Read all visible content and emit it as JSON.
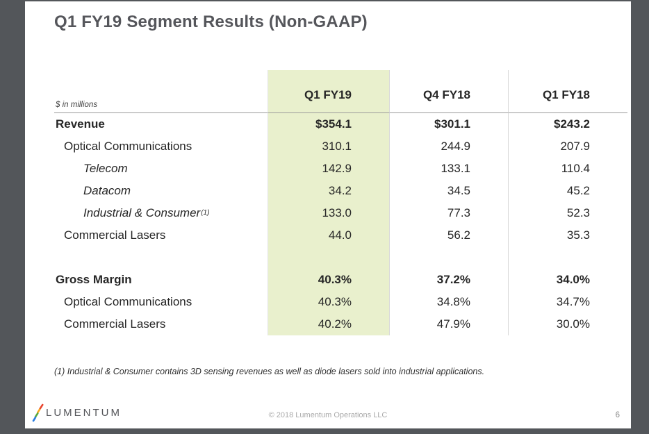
{
  "slide": {
    "title": "Q1 FY19 Segment Results  (Non-GAAP)",
    "units_label": "$ in millions",
    "table": {
      "columns": [
        "Q1 FY19",
        "Q4 FY18",
        "Q1 FY18"
      ],
      "highlight_color": "#e9f0cd",
      "rows": [
        {
          "label": "Revenue",
          "style": "bold",
          "indent": 0,
          "values": [
            "$354.1",
            "$301.1",
            "$243.2"
          ]
        },
        {
          "label": "Optical Communications",
          "style": "normal",
          "indent": 1,
          "values": [
            "310.1",
            "244.9",
            "207.9"
          ]
        },
        {
          "label": "Telecom",
          "style": "italic",
          "indent": 2,
          "values": [
            "142.9",
            "133.1",
            "110.4"
          ]
        },
        {
          "label": "Datacom",
          "style": "italic",
          "indent": 2,
          "values": [
            "34.2",
            "34.5",
            "45.2"
          ]
        },
        {
          "label": "Industrial & Consumer",
          "superscript": "(1)",
          "style": "italic",
          "indent": 2,
          "values": [
            "133.0",
            "77.3",
            "52.3"
          ]
        },
        {
          "label": "Commercial Lasers",
          "style": "normal",
          "indent": 1,
          "values": [
            "44.0",
            "56.2",
            "35.3"
          ]
        },
        {
          "label": "",
          "style": "spacer",
          "indent": 0,
          "values": [
            "",
            "",
            ""
          ]
        },
        {
          "label": "Gross Margin",
          "style": "bold",
          "indent": 0,
          "values": [
            "40.3%",
            "37.2%",
            "34.0%"
          ]
        },
        {
          "label": "Optical Communications",
          "style": "normal",
          "indent": 1,
          "values": [
            "40.3%",
            "34.8%",
            "34.7%"
          ]
        },
        {
          "label": "Commercial Lasers",
          "style": "normal",
          "indent": 1,
          "values": [
            "40.2%",
            "47.9%",
            "30.0%"
          ]
        }
      ]
    },
    "footnote": "(1) Industrial & Consumer contains 3D sensing revenues as well as diode lasers sold into industrial applications.",
    "footer": {
      "logo_text": "LUMENTUM",
      "logo_colors": [
        "#e8442e",
        "#f6a81f",
        "#57a83d",
        "#2a7de1"
      ],
      "copyright": "© 2018 Lumentum Operations LLC",
      "page_number": "6"
    }
  }
}
